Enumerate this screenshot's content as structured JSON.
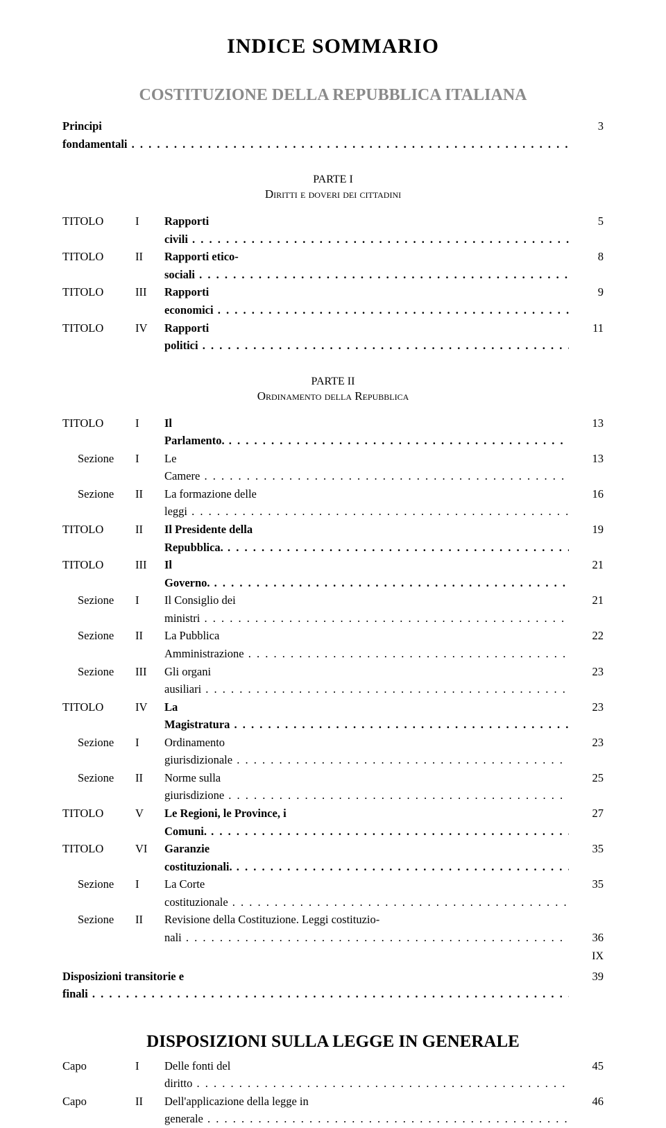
{
  "main_title": "INDICE SOMMARIO",
  "doc1_title": "COSTITUZIONE DELLA REPUBBLICA ITALIANA",
  "principi": {
    "label": "Principi fondamentali",
    "page": "3"
  },
  "parte1": {
    "label": "PARTE I",
    "subtitle": "Diritti e doveri dei cittadini",
    "rows": [
      {
        "level": "TITOLO",
        "num": "I",
        "text": "Rapporti civili",
        "page": "5",
        "bold": true
      },
      {
        "level": "TITOLO",
        "num": "II",
        "text": "Rapporti etico-sociali",
        "page": "8",
        "bold": true
      },
      {
        "level": "TITOLO",
        "num": "III",
        "text": "Rapporti economici",
        "page": "9",
        "bold": true
      },
      {
        "level": "TITOLO",
        "num": "IV",
        "text": "Rapporti politici",
        "page": "11",
        "bold": true
      }
    ]
  },
  "parte2": {
    "label": "PARTE II",
    "subtitle": "Ordinamento della Repubblica",
    "rows": [
      {
        "level": "TITOLO",
        "num": "I",
        "text": "Il Parlamento.",
        "page": "13",
        "bold": true
      },
      {
        "level": "Sezione",
        "num": "I",
        "text": "Le Camere",
        "page": "13",
        "indent": true
      },
      {
        "level": "Sezione",
        "num": "II",
        "text": "La formazione delle leggi",
        "page": "16",
        "indent": true
      },
      {
        "level": "TITOLO",
        "num": "II",
        "text": "Il Presidente della Repubblica.",
        "page": "19",
        "bold": true
      },
      {
        "level": "TITOLO",
        "num": "III",
        "text": "Il Governo.",
        "page": "21",
        "bold": true
      },
      {
        "level": "Sezione",
        "num": "I",
        "text": "Il Consiglio dei ministri",
        "page": "21",
        "indent": true
      },
      {
        "level": "Sezione",
        "num": "II",
        "text": "La Pubblica Amministrazione",
        "page": "22",
        "indent": true
      },
      {
        "level": "Sezione",
        "num": "III",
        "text": "Gli organi ausiliari",
        "page": "23",
        "indent": true
      },
      {
        "level": "TITOLO",
        "num": "IV",
        "text": "La Magistratura",
        "page": "23",
        "bold": true
      },
      {
        "level": "Sezione",
        "num": "I",
        "text": "Ordinamento giurisdizionale",
        "page": "23",
        "indent": true
      },
      {
        "level": "Sezione",
        "num": "II",
        "text": "Norme sulla giurisdizione",
        "page": "25",
        "indent": true
      },
      {
        "level": "TITOLO",
        "num": "V",
        "text": "Le Regioni, le Province, i Comuni.",
        "page": "27",
        "bold": true
      },
      {
        "level": "TITOLO",
        "num": "VI",
        "text": "Garanzie costituzionali.",
        "page": "35",
        "bold": true
      },
      {
        "level": "Sezione",
        "num": "I",
        "text": "La Corte costituzionale",
        "page": "35",
        "indent": true
      },
      {
        "level": "Sezione",
        "num": "II",
        "text": "Revisione della Costituzione. Leggi costituzio-",
        "page": "",
        "indent": true,
        "nodots": true
      },
      {
        "level": "",
        "num": "",
        "text": "nali",
        "page": "36",
        "indent": true
      }
    ]
  },
  "disposizioni_trans": {
    "label": "Disposizioni transitorie e finali",
    "page": "39"
  },
  "doc2_title": "DISPOSIZIONI SULLA LEGGE IN GENERALE",
  "doc2_rows": [
    {
      "level": "Capo",
      "num": "I",
      "text": "Delle fonti del diritto",
      "page": "45"
    },
    {
      "level": "Capo",
      "num": "II",
      "text": "Dell'applicazione della legge in generale",
      "page": "46"
    }
  ],
  "page_number": "IX"
}
